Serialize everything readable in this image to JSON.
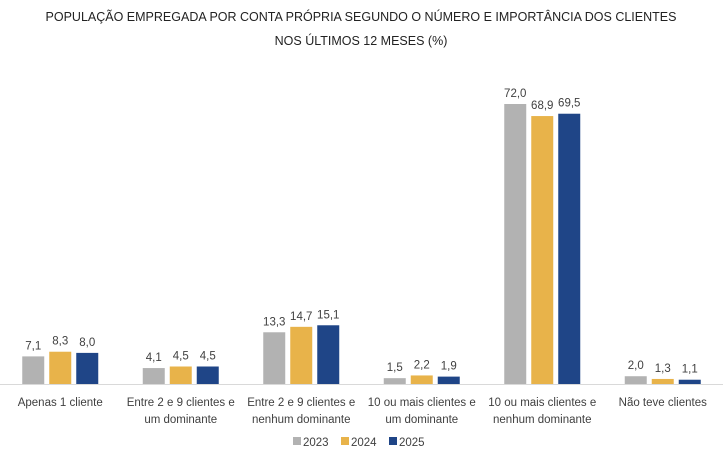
{
  "chart_data": {
    "type": "bar",
    "title": [
      "POPULAÇÃO EMPREGADA POR CONTA PRÓPRIA SEGUNDO O NÚMERO E IMPORTÂNCIA DOS CLIENTES",
      "NOS ÚLTIMOS 12 MESES (%)"
    ],
    "xlabel": "",
    "ylabel": "",
    "ylim": [
      0,
      72
    ],
    "grid": false,
    "legend_position": "bottom-center",
    "categories": [
      [
        "Apenas 1 cliente"
      ],
      [
        "Entre 2 e 9 clientes e",
        "um dominante"
      ],
      [
        "Entre 2 e 9 clientes e",
        "nenhum dominante"
      ],
      [
        "10 ou mais clientes e",
        "um dominante"
      ],
      [
        "10 ou mais clientes e",
        "nenhum dominante"
      ],
      [
        "Não teve clientes"
      ]
    ],
    "series": [
      {
        "name": "2023",
        "color": "#b2b2b2",
        "values": [
          7.1,
          4.1,
          13.3,
          1.5,
          72.0,
          2.0
        ],
        "labels": [
          "7,1",
          "4,1",
          "13,3",
          "1,5",
          "72,0",
          "2,0"
        ]
      },
      {
        "name": "2024",
        "color": "#e8b34a",
        "values": [
          8.3,
          4.5,
          14.7,
          2.2,
          68.9,
          1.3
        ],
        "labels": [
          "8,3",
          "4,5",
          "14,7",
          "2,2",
          "68,9",
          "1,3"
        ]
      },
      {
        "name": "2025",
        "color": "#1f4587",
        "values": [
          8.0,
          4.5,
          15.1,
          1.9,
          69.5,
          1.1
        ],
        "labels": [
          "8,0",
          "4,5",
          "15,1",
          "1,9",
          "69,5",
          "1,1"
        ]
      }
    ]
  }
}
